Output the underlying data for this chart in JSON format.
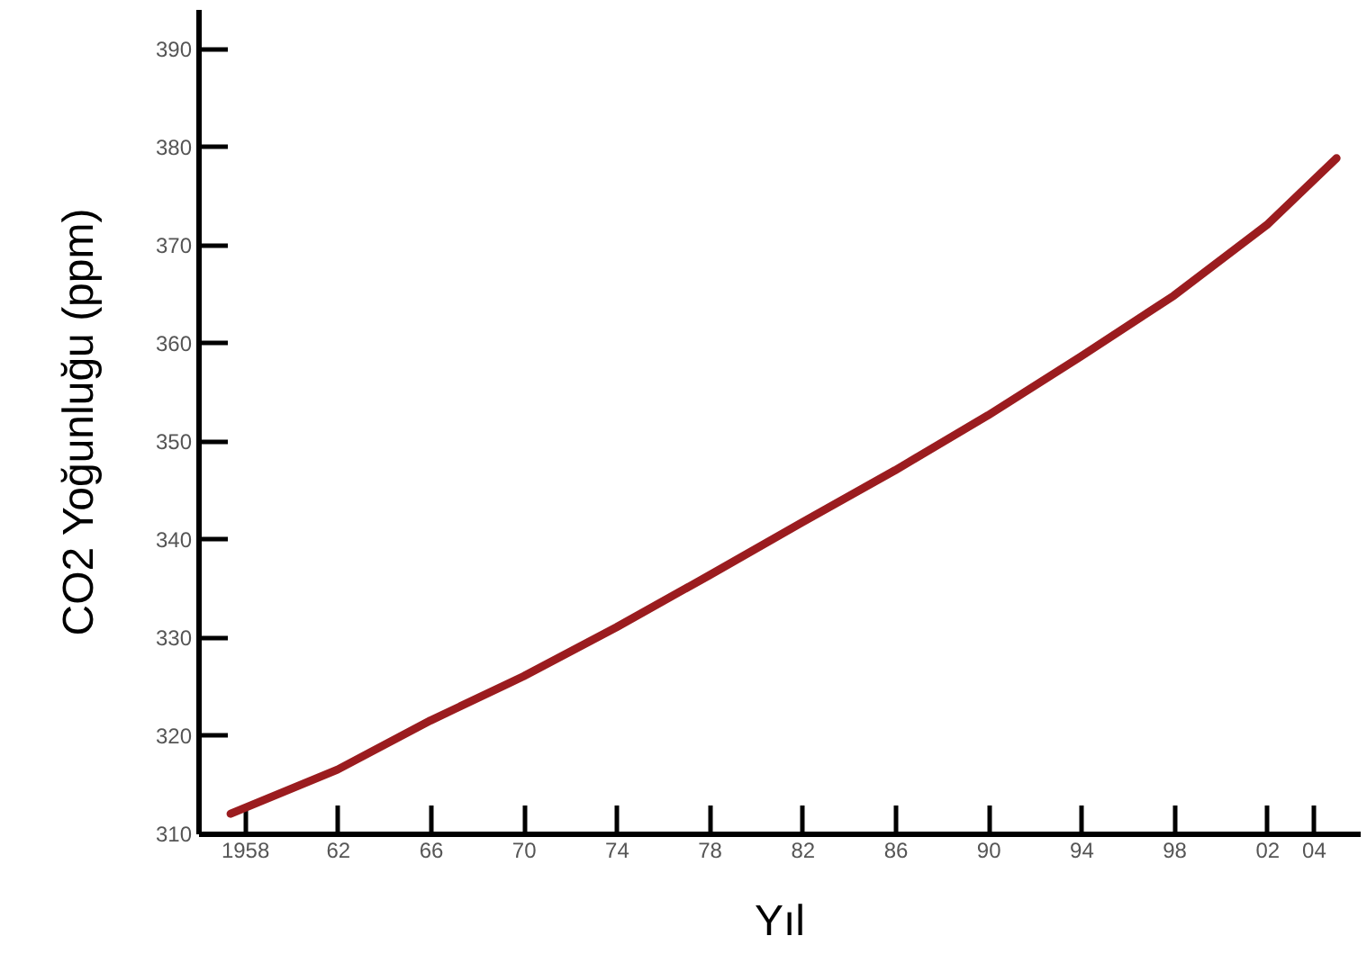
{
  "chart_data": {
    "type": "line",
    "xlabel": "Yıl",
    "ylabel": "CO2 Yoğunluğu (ppm)",
    "xlim": [
      1956,
      2006
    ],
    "ylim": [
      310,
      394
    ],
    "xticks": [
      1958,
      {
        "value": 1962,
        "label": "62"
      },
      {
        "value": 1966,
        "label": "66"
      },
      {
        "value": 1970,
        "label": "70"
      },
      {
        "value": 1974,
        "label": "74"
      },
      {
        "value": 1978,
        "label": "78"
      },
      {
        "value": 1982,
        "label": "82"
      },
      {
        "value": 1986,
        "label": "86"
      },
      {
        "value": 1990,
        "label": "90"
      },
      {
        "value": 1994,
        "label": "94"
      },
      {
        "value": 1998,
        "label": "98"
      },
      {
        "value": 2002,
        "label": "02"
      },
      {
        "value": 2004,
        "label": "04"
      }
    ],
    "yticks": [
      310,
      320,
      330,
      340,
      350,
      360,
      370,
      380,
      390
    ],
    "grid": false,
    "marker": "none",
    "line_style": "solid",
    "x": [
      1957.4,
      1962,
      1966,
      1970,
      1974,
      1978,
      1982,
      1986,
      1990,
      1994,
      1998,
      2002,
      2005
    ],
    "series": [
      {
        "color": "#9b1c1f",
        "values": [
          312.0,
          316.5,
          321.5,
          326.0,
          331.0,
          336.3,
          341.7,
          347.0,
          352.6,
          358.6,
          364.8,
          372.0,
          378.8
        ]
      }
    ]
  }
}
